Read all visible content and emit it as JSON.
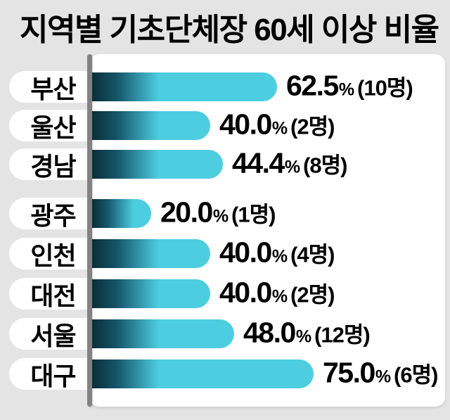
{
  "title": "지역별 기초단체장 60세 이상 비율",
  "colors": {
    "background": "#e4e4e4",
    "panel": "#ffffff",
    "axis_line": "#828282",
    "bar_cyan": "#4dcde0",
    "bar_dark": "#0b2d39",
    "text": "#000000",
    "label_pill": "#ffffff"
  },
  "chart_data": {
    "type": "bar",
    "orientation": "horizontal",
    "title": "지역별 기초단체장 60세 이상 비율",
    "value_unit": "%",
    "xlim": [
      0,
      80
    ],
    "grid": false,
    "legend": false,
    "categories": [
      "부산",
      "울산",
      "경남",
      "광주",
      "인천",
      "대전",
      "서울",
      "대구"
    ],
    "values": [
      62.5,
      40.0,
      44.4,
      20.0,
      40.0,
      40.0,
      48.0,
      75.0
    ],
    "counts": [
      10,
      2,
      8,
      1,
      4,
      2,
      12,
      6
    ],
    "group_breaks_after": [
      "경남"
    ],
    "bars": [
      {
        "region": "부산",
        "value": 62.5,
        "percent_label": "62.5",
        "percent_sign": "%",
        "count_label": "(10명)"
      },
      {
        "region": "울산",
        "value": 40.0,
        "percent_label": "40.0",
        "percent_sign": "%",
        "count_label": "(2명)"
      },
      {
        "region": "경남",
        "value": 44.4,
        "percent_label": "44.4",
        "percent_sign": "%",
        "count_label": "(8명)"
      },
      {
        "region": "광주",
        "value": 20.0,
        "percent_label": "20.0",
        "percent_sign": "%",
        "count_label": "(1명)"
      },
      {
        "region": "인천",
        "value": 40.0,
        "percent_label": "40.0",
        "percent_sign": "%",
        "count_label": "(4명)"
      },
      {
        "region": "대전",
        "value": 40.0,
        "percent_label": "40.0",
        "percent_sign": "%",
        "count_label": "(2명)"
      },
      {
        "region": "서울",
        "value": 48.0,
        "percent_label": "48.0",
        "percent_sign": "%",
        "count_label": "(12명)"
      },
      {
        "region": "대구",
        "value": 75.0,
        "percent_label": "75.0",
        "percent_sign": "%",
        "count_label": "(6명)"
      }
    ]
  }
}
